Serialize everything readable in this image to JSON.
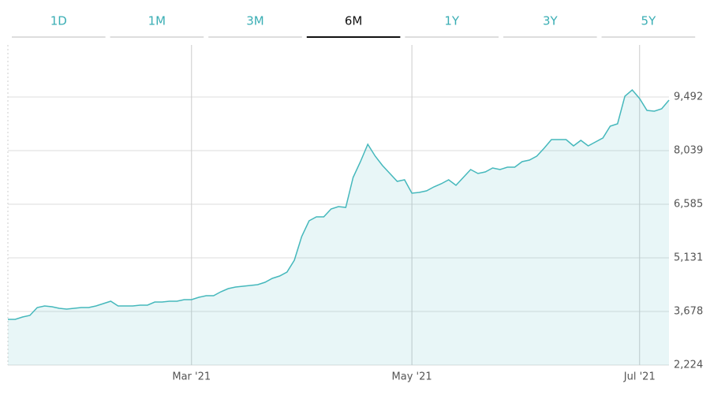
{
  "tabs": [
    "1D",
    "1M",
    "3M",
    "6M",
    "1Y",
    "3Y",
    "5Y"
  ],
  "active_tab": "6M",
  "chart_data": {
    "type": "area",
    "categories": [
      null,
      null,
      null,
      null,
      null,
      null,
      null,
      null,
      null,
      null,
      null,
      null,
      null,
      null,
      null,
      null,
      null,
      null,
      null,
      null,
      null,
      null,
      null,
      null,
      null,
      "Mar '21",
      null,
      null,
      null,
      null,
      null,
      null,
      null,
      null,
      null,
      null,
      null,
      null,
      null,
      null,
      null,
      null,
      null,
      null,
      null,
      null,
      null,
      null,
      null,
      null,
      null,
      null,
      null,
      null,
      null,
      "May '21",
      null,
      null,
      null,
      null,
      null,
      null,
      null,
      null,
      null,
      null,
      null,
      null,
      null,
      null,
      null,
      null,
      null,
      null,
      null,
      null,
      null,
      null,
      null,
      null,
      null,
      null,
      null,
      null,
      null,
      null,
      "Jul '21",
      null,
      null,
      null,
      null
    ],
    "values": [
      3464,
      3464,
      3528,
      3570,
      3784,
      3827,
      3806,
      3763,
      3742,
      3763,
      3784,
      3784,
      3827,
      3891,
      3955,
      3827,
      3827,
      3827,
      3848,
      3848,
      3934,
      3934,
      3955,
      3955,
      3998,
      3998,
      4062,
      4105,
      4105,
      4212,
      4297,
      4340,
      4361,
      4383,
      4404,
      4468,
      4575,
      4639,
      4746,
      5067,
      5708,
      6136,
      6243,
      6243,
      6456,
      6520,
      6499,
      7311,
      7739,
      8209,
      7889,
      7632,
      7418,
      7205,
      7248,
      6884,
      6905,
      6948,
      7055,
      7141,
      7248,
      7098,
      7311,
      7525,
      7418,
      7461,
      7568,
      7525,
      7589,
      7589,
      7739,
      7782,
      7889,
      8103,
      8337,
      8337,
      8337,
      8166,
      8316,
      8166,
      8273,
      8380,
      8701,
      8765,
      9513,
      9684,
      9449,
      9128,
      9107,
      9171,
      9406
    ],
    "color": "#45b8bc",
    "ylim": [
      2224,
      10902
    ],
    "yticks": [
      {
        "value": 2224,
        "label": "2,224"
      },
      {
        "value": 3678,
        "label": "3,678"
      },
      {
        "value": 5131,
        "label": "5,131"
      },
      {
        "value": 6585,
        "label": "6,585"
      },
      {
        "value": 8039,
        "label": "8,039"
      },
      {
        "value": 9492,
        "label": "9,492"
      }
    ],
    "grid": true
  }
}
